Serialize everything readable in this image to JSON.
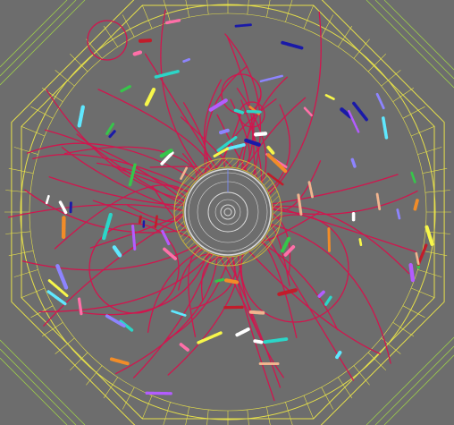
{
  "event_display": {
    "colors": {
      "background": "#6d6d6d",
      "detector_outline": "#e6e04a",
      "detector_corner_lines": "#9ecf4a",
      "track": "#d0164e",
      "inner_detector": "#d9d9d9",
      "calorimeter_hatching": "#c9b43a"
    },
    "hit_palette": [
      "#2bd6c8",
      "#f7f74a",
      "#1a1aa8",
      "#36c64a",
      "#ff6fa8",
      "#8d84ff",
      "#f2b48e",
      "#c21c2a",
      "#5fe8ff",
      "#b35cff",
      "#ffffff",
      "#f28c28"
    ]
  }
}
